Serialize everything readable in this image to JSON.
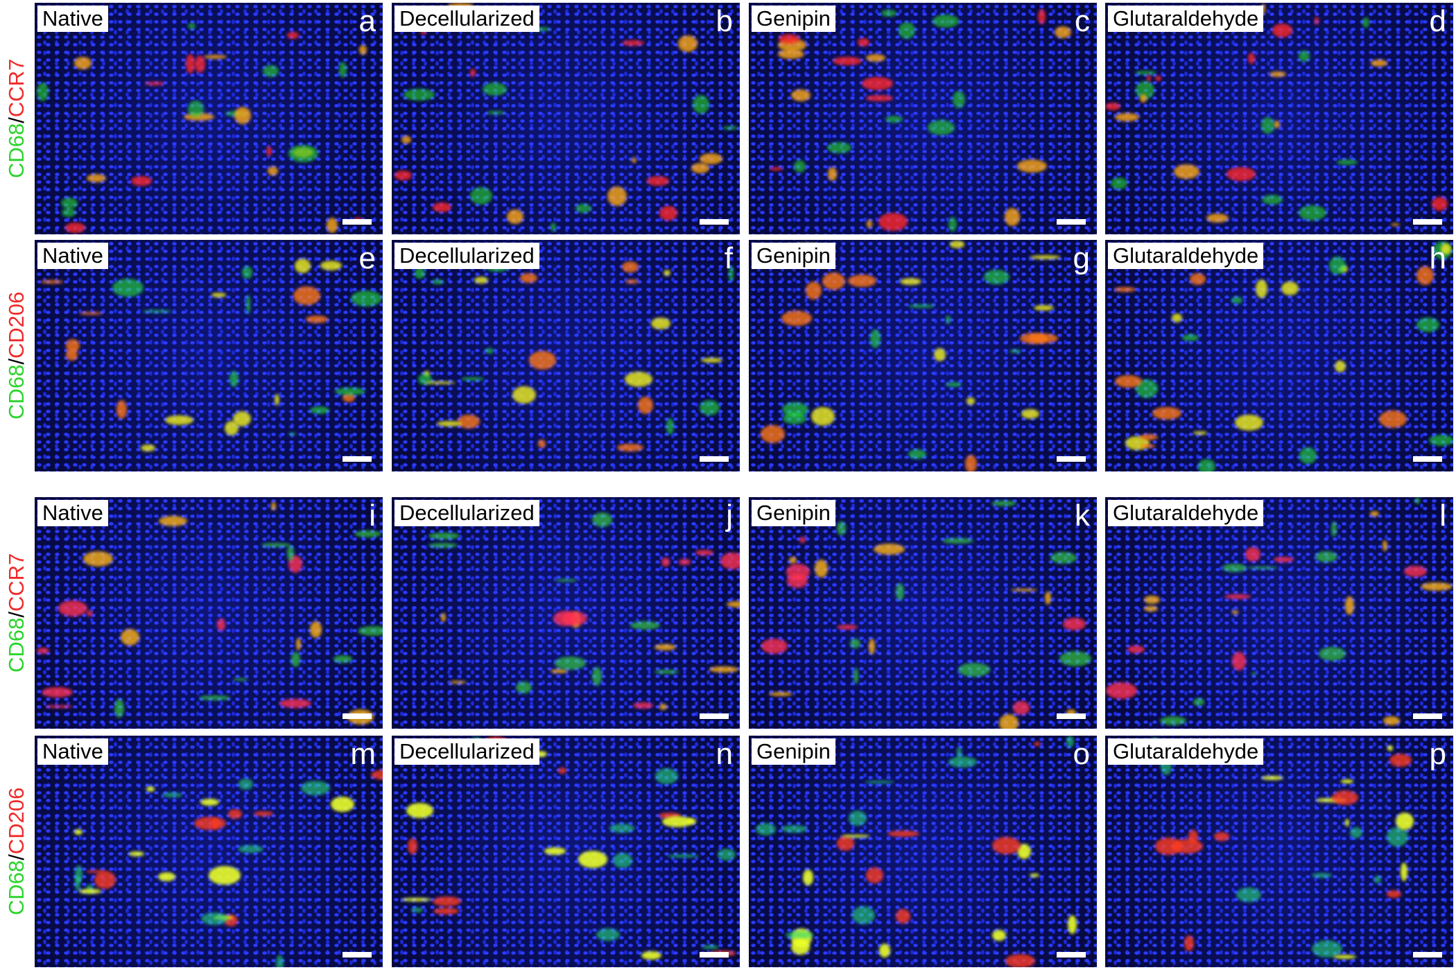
{
  "rows": [
    {
      "stain": {
        "green": "CD68",
        "sep": "/",
        "red": "CCR7"
      },
      "panels": [
        {
          "label": "Native",
          "letter": "a"
        },
        {
          "label": "Decellularized",
          "letter": "b"
        },
        {
          "label": "Genipin",
          "letter": "c"
        },
        {
          "label": "Glutaraldehyde",
          "letter": "d"
        }
      ]
    },
    {
      "stain": {
        "green": "CD68",
        "sep": "/",
        "red": "CD206"
      },
      "panels": [
        {
          "label": "Native",
          "letter": "e"
        },
        {
          "label": "Decellularized",
          "letter": "f"
        },
        {
          "label": "Genipin",
          "letter": "g"
        },
        {
          "label": "Glutaraldehyde",
          "letter": "h"
        }
      ]
    },
    {
      "stain": {
        "green": "CD68",
        "sep": "/",
        "red": "CCR7"
      },
      "panels": [
        {
          "label": "Native",
          "letter": "i"
        },
        {
          "label": "Decellularized",
          "letter": "j"
        },
        {
          "label": "Genipin",
          "letter": "k"
        },
        {
          "label": "Glutaraldehyde",
          "letter": "l"
        }
      ]
    },
    {
      "stain": {
        "green": "CD68",
        "sep": "/",
        "red": "CD206"
      },
      "panels": [
        {
          "label": "Native",
          "letter": "m"
        },
        {
          "label": "Decellularized",
          "letter": "n"
        },
        {
          "label": "Genipin",
          "letter": "o"
        },
        {
          "label": "Glutaraldehyde",
          "letter": "p"
        }
      ]
    }
  ]
}
